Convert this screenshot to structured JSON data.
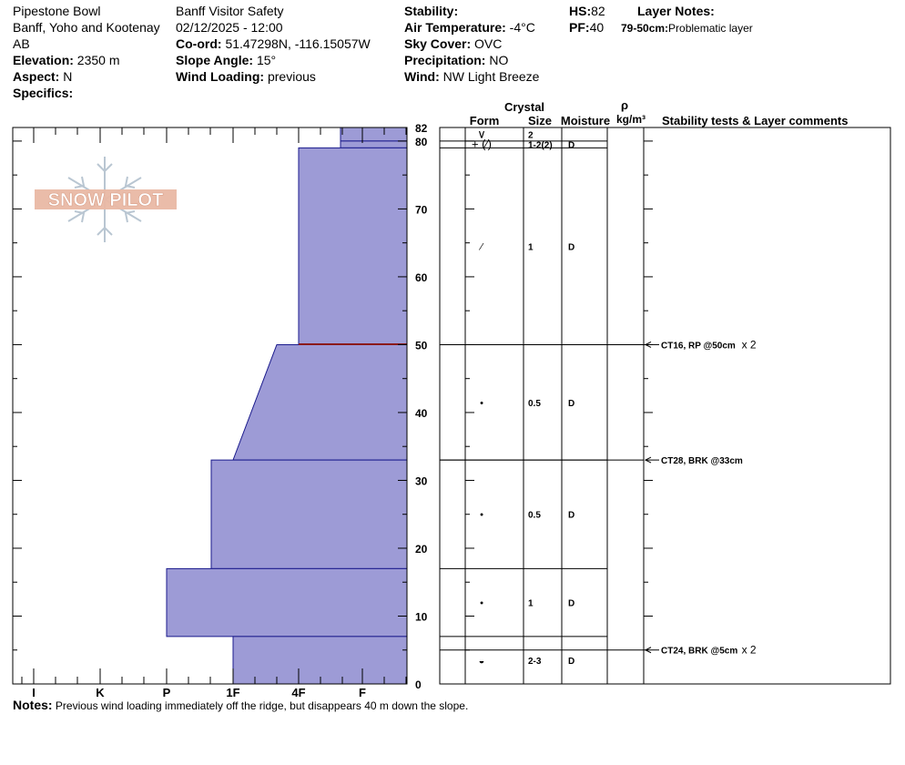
{
  "header": {
    "location": "Pipestone Bowl",
    "region": "Banff, Yoho and Kootenay",
    "province": "AB",
    "elevation_label": "Elevation:",
    "elevation": "2350 m",
    "aspect_label": "Aspect:",
    "aspect": "N",
    "specifics_label": "Specifics:",
    "operation": "Banff  Visitor Safety",
    "datetime": "02/12/2025 - 12:00",
    "coord_label": "Co-ord:",
    "coord": "51.47298N, -116.15057W",
    "slope_label": "Slope Angle:",
    "slope": "15°",
    "wind_loading_label": "Wind Loading:",
    "wind_loading": "previous",
    "stability_label": "Stability:",
    "stability": "",
    "air_temp_label": "Air Temperature:",
    "air_temp": "-4°C",
    "sky_label": "Sky Cover:",
    "sky": "OVC",
    "precip_label": "Precipitation:",
    "precip": "NO",
    "wind_label": "Wind:",
    "wind": " NW Light Breeze",
    "hs_label": "HS:",
    "hs": "82",
    "pf_label": "PF:",
    "pf": "40",
    "layer_notes_label": "Layer Notes:",
    "layer_note_range": "79-50cm:",
    "layer_note_text": "Problematic layer"
  },
  "columns": {
    "crystal": "Crystal",
    "form": "Form",
    "size": "Size",
    "moisture": "Moisture",
    "rho": "ρ",
    "density_unit": "kg/m³",
    "comments": "Stability tests & Layer comments"
  },
  "logo": {
    "text": "SNOW PILOT"
  },
  "notes": {
    "label": "Notes:",
    "text": "Previous wind loading immediately off the ridge, but disappears 40 m down the slope."
  },
  "colors": {
    "layer_fill": "#9d9bd6",
    "layer_stroke": "#1a1a8c",
    "problem_layer": "#8b1a1a",
    "logo": "#e9b8a4",
    "logo_flake": "#b9c6d2"
  },
  "chart_data": {
    "type": "bar",
    "title": "",
    "ylabel": "",
    "xlabel": "",
    "y_range": [
      0,
      82
    ],
    "y_ticks": [
      0,
      10,
      20,
      30,
      40,
      50,
      60,
      70,
      80,
      82
    ],
    "hardness_scale": [
      "I",
      "K",
      "P",
      "1F",
      "4F",
      "F"
    ],
    "layers": [
      {
        "top": 82,
        "bottom": 80,
        "hardness_top": "F-",
        "hardness_bottom": "F-",
        "form": "∨",
        "size": "2",
        "moisture": ""
      },
      {
        "top": 80,
        "bottom": 79,
        "hardness_top": "F-",
        "hardness_bottom": "F-",
        "form": "+ (⁄)",
        "size": "1-2(2)",
        "moisture": "D"
      },
      {
        "top": 79,
        "bottom": 50,
        "hardness_top": "4F",
        "hardness_bottom": "4F",
        "form": "⁄",
        "size": "1",
        "moisture": "D"
      },
      {
        "top": 50,
        "bottom": 33,
        "hardness_top": "4F-",
        "hardness_bottom": "1F",
        "form": "•",
        "size": "0.5",
        "moisture": "D"
      },
      {
        "top": 33,
        "bottom": 17,
        "hardness_top": "1F-",
        "hardness_bottom": "1F-",
        "form": "•",
        "size": "0.5",
        "moisture": "D"
      },
      {
        "top": 17,
        "bottom": 7,
        "hardness_top": "P",
        "hardness_bottom": "P",
        "form": "•",
        "size": "1",
        "moisture": "D"
      },
      {
        "top": 7,
        "bottom": 0,
        "hardness_top": "1F",
        "hardness_bottom": "1F",
        "form": "◒",
        "size": "2-3",
        "moisture": "D"
      }
    ],
    "problem_layer_depth": 50,
    "stability_tests": [
      {
        "depth": 50,
        "label": "CT16, RP @50cm",
        "multiplier": "x 2"
      },
      {
        "depth": 33,
        "label": "CT28, BRK @33cm",
        "multiplier": ""
      },
      {
        "depth": 5,
        "label": "CT24, BRK @5cm",
        "multiplier": "x 2"
      }
    ]
  }
}
